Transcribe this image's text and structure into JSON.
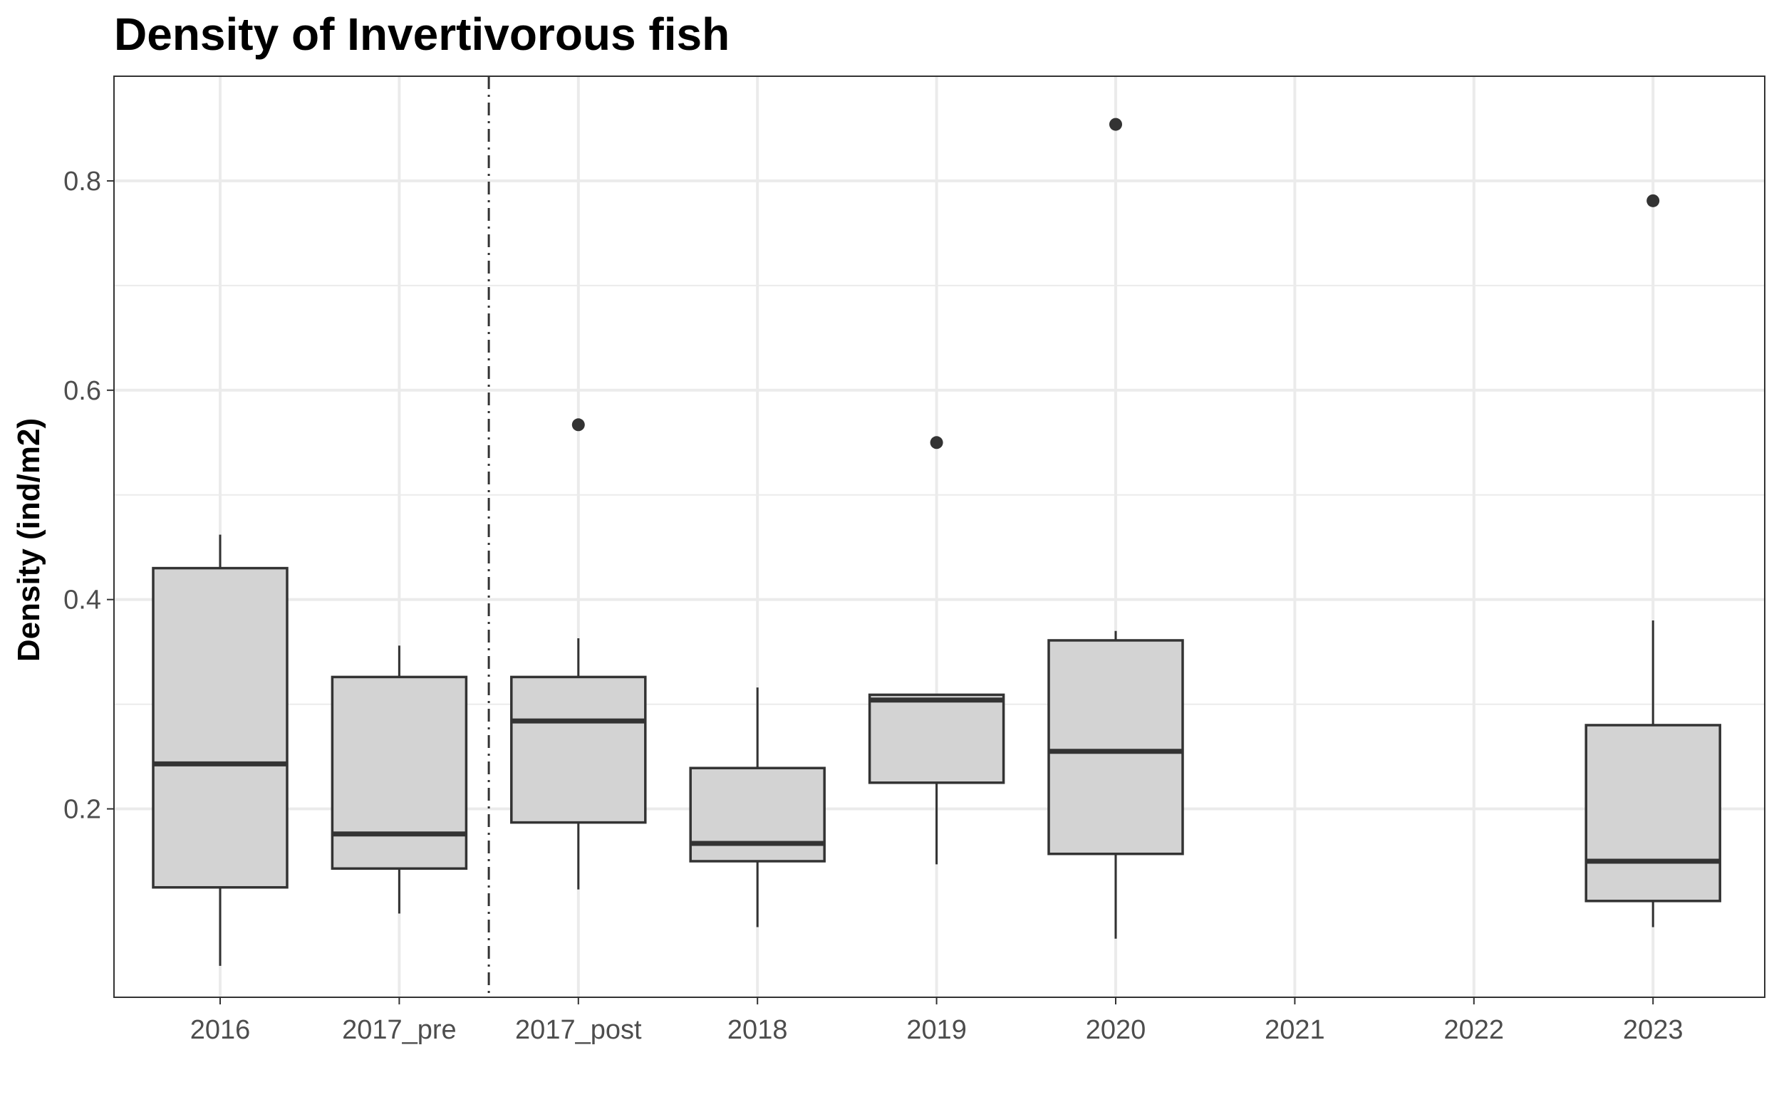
{
  "chart_data": {
    "type": "box",
    "title": "Density of Invertivorous fish",
    "xlabel": "",
    "ylabel": "Density (ind/m2)",
    "categories": [
      "2016",
      "2017_pre",
      "2017_post",
      "2018",
      "2019",
      "2020",
      "2021",
      "2022",
      "2023"
    ],
    "y_ticks": [
      0.2,
      0.4,
      0.6,
      0.8
    ],
    "y_tick_labels": [
      "0.2",
      "0.4",
      "0.6",
      "0.8"
    ],
    "ylim": [
      0.02,
      0.9
    ],
    "grid": true,
    "legend": "none",
    "reference_line": {
      "type": "vertical-dashdot",
      "between": [
        "2017_pre",
        "2017_post"
      ]
    },
    "boxes": [
      {
        "category": "2016",
        "whisker_low": 0.05,
        "q1": 0.125,
        "median": 0.243,
        "q3": 0.43,
        "whisker_high": 0.462,
        "outliers": []
      },
      {
        "category": "2017_pre",
        "whisker_low": 0.1,
        "q1": 0.143,
        "median": 0.176,
        "q3": 0.326,
        "whisker_high": 0.356,
        "outliers": []
      },
      {
        "category": "2017_post",
        "whisker_low": 0.123,
        "q1": 0.187,
        "median": 0.284,
        "q3": 0.326,
        "whisker_high": 0.363,
        "outliers": [
          0.567
        ]
      },
      {
        "category": "2018",
        "whisker_low": 0.087,
        "q1": 0.15,
        "median": 0.167,
        "q3": 0.239,
        "whisker_high": 0.316,
        "outliers": []
      },
      {
        "category": "2019",
        "whisker_low": 0.147,
        "q1": 0.225,
        "median": 0.304,
        "q3": 0.309,
        "whisker_high": 0.309,
        "outliers": [
          0.55
        ]
      },
      {
        "category": "2020",
        "whisker_low": 0.076,
        "q1": 0.157,
        "median": 0.255,
        "q3": 0.361,
        "whisker_high": 0.37,
        "outliers": [
          0.854
        ]
      },
      {
        "category": "2023",
        "whisker_low": 0.087,
        "q1": 0.112,
        "median": 0.15,
        "q3": 0.28,
        "whisker_high": 0.38,
        "outliers": [
          0.781
        ]
      }
    ],
    "colors": {
      "box_fill": "#d3d3d3",
      "box_stroke": "#333333",
      "grid": "#ebebeb",
      "panel_border": "#333333",
      "tick_text": "#4d4d4d"
    }
  }
}
